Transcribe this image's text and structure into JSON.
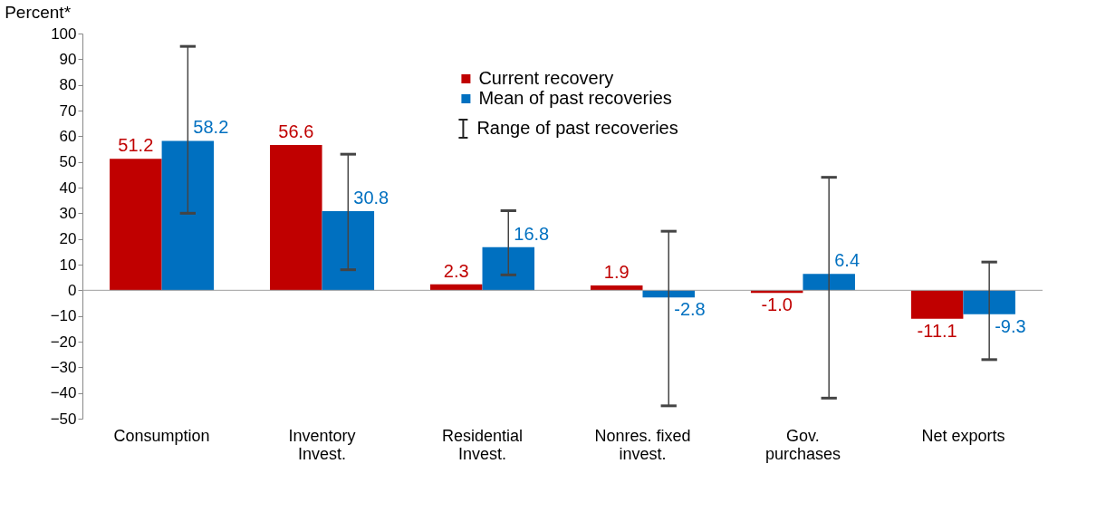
{
  "chart_data": {
    "type": "bar",
    "ylabel": "Percent*",
    "categories": [
      "Consumption",
      "Inventory\nInvest.",
      "Residential\nInvest.",
      "Nonres. fixed\ninvest.",
      "Gov.\npurchases",
      "Net exports"
    ],
    "series": [
      {
        "name": "Current recovery",
        "color": "#c00000",
        "values": [
          51.2,
          56.6,
          2.3,
          1.9,
          -1.0,
          -11.1
        ],
        "value_labels": [
          "51.2",
          "56.6",
          "2.3",
          "1.9",
          "-1.0",
          "-11.1"
        ]
      },
      {
        "name": "Mean of past recoveries",
        "color": "#0070c0",
        "values": [
          58.2,
          30.8,
          16.8,
          -2.8,
          6.4,
          -9.3
        ],
        "value_labels": [
          "58.2",
          "30.8",
          "16.8",
          "-2.8",
          "6.4",
          "-9.3"
        ],
        "errors": [
          [
            30,
            95
          ],
          [
            8,
            53
          ],
          [
            6,
            31
          ],
          [
            -45,
            23
          ],
          [
            -42,
            44
          ],
          [
            -27,
            11
          ]
        ]
      }
    ],
    "ylim": [
      -50,
      100
    ],
    "yticks": [
      -50,
      -40,
      -30,
      -20,
      -10,
      0,
      10,
      20,
      30,
      40,
      50,
      60,
      70,
      80,
      90,
      100
    ],
    "ref_lines": [
      {
        "axis": "y",
        "value": 0,
        "color": "#a0a0a0"
      }
    ],
    "annotations": [
      "Range of past recoveries"
    ],
    "grid": false,
    "legend": "top"
  }
}
